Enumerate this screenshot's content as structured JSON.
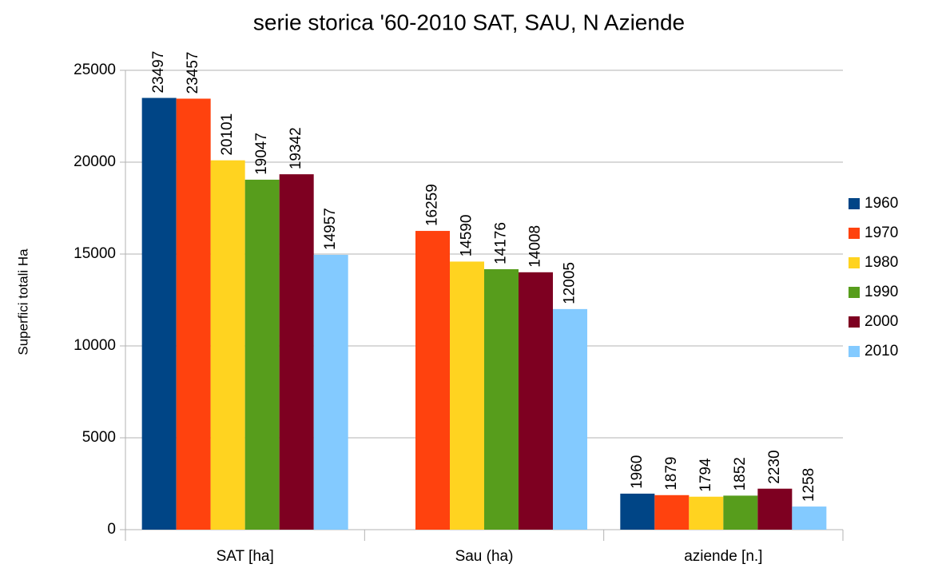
{
  "chart_data": {
    "type": "bar",
    "title": "serie storica '60-2010 SAT, SAU, N Aziende",
    "y_label": "Superfici totali Ha",
    "categories": [
      "SAT [ha]",
      "Sau (ha)",
      "aziende [n.]"
    ],
    "series": [
      {
        "name": "1960",
        "color": "#004586",
        "values": [
          23497,
          null,
          1960
        ]
      },
      {
        "name": "1970",
        "color": "#ff420e",
        "values": [
          23457,
          16259,
          1879
        ]
      },
      {
        "name": "1980",
        "color": "#ffd320",
        "values": [
          20101,
          14590,
          1794
        ]
      },
      {
        "name": "1990",
        "color": "#579d1c",
        "values": [
          19047,
          14176,
          1852
        ]
      },
      {
        "name": "2000",
        "color": "#7e0021",
        "values": [
          19342,
          14008,
          2230
        ]
      },
      {
        "name": "2010",
        "color": "#83caff",
        "values": [
          14957,
          12005,
          1258
        ]
      }
    ],
    "ylim": [
      0,
      25000
    ],
    "yticks": [
      0,
      5000,
      10000,
      15000,
      20000,
      25000
    ],
    "grid": true,
    "legend": "right"
  }
}
